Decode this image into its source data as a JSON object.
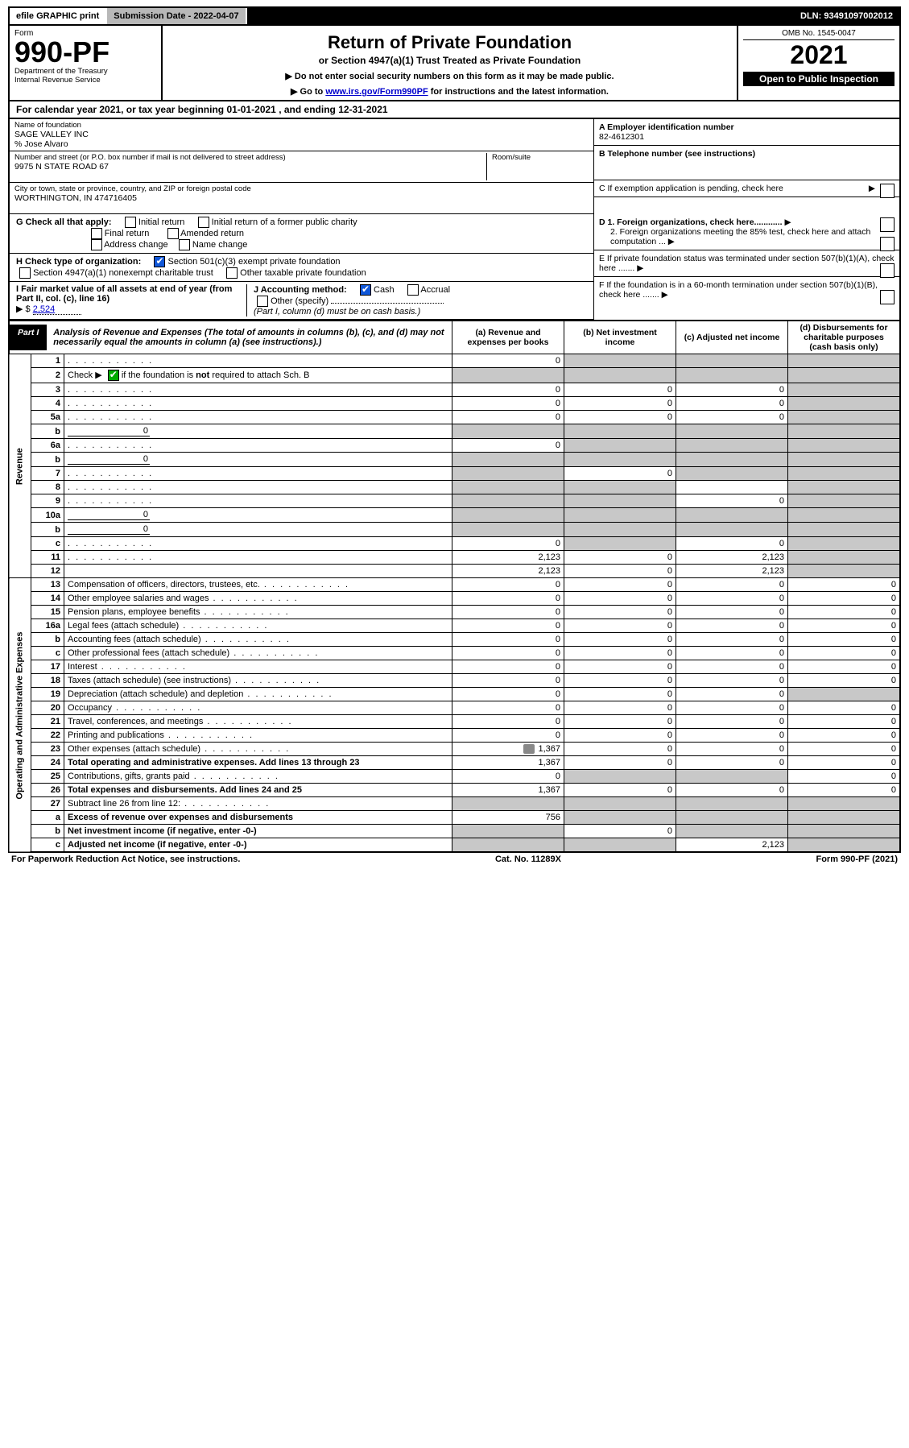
{
  "colors": {
    "black": "#000000",
    "white": "#ffffff",
    "header_grey": "#b8b8b8",
    "cell_grey": "#c8c8c8",
    "link_blue": "#0000cc",
    "check_green": "#0a9f0a",
    "check_blue": "#1057d8"
  },
  "topbar": {
    "efile": "efile GRAPHIC print",
    "submission": "Submission Date - 2022-04-07",
    "dln": "DLN: 93491097002012"
  },
  "header": {
    "form_label": "Form",
    "form_number": "990-PF",
    "dept": "Department of the Treasury",
    "irs": "Internal Revenue Service",
    "title": "Return of Private Foundation",
    "subtitle": "or Section 4947(a)(1) Trust Treated as Private Foundation",
    "instr1": "▶ Do not enter social security numbers on this form as it may be made public.",
    "instr2_pre": "▶ Go to ",
    "instr2_link": "www.irs.gov/Form990PF",
    "instr2_post": " for instructions and the latest information.",
    "omb": "OMB No. 1545-0047",
    "year": "2021",
    "open": "Open to Public Inspection"
  },
  "cal": {
    "text_pre": "For calendar year 2021, or tax year beginning ",
    "begin": "01-01-2021",
    "text_mid": " , and ending ",
    "end": "12-31-2021"
  },
  "entity": {
    "name_label": "Name of foundation",
    "name": "SAGE VALLEY INC",
    "care_of": "% Jose Alvaro",
    "addr_label": "Number and street (or P.O. box number if mail is not delivered to street address)",
    "addr": "9975 N STATE ROAD 67",
    "room_label": "Room/suite",
    "city_label": "City or town, state or province, country, and ZIP or foreign postal code",
    "city": "WORTHINGTON, IN  474716405"
  },
  "right": {
    "A_label": "A Employer identification number",
    "A_val": "82-4612301",
    "B_label": "B Telephone number (see instructions)",
    "C_label": "C If exemption application is pending, check here",
    "D1": "D 1. Foreign organizations, check here............",
    "D2": "2. Foreign organizations meeting the 85% test, check here and attach computation ...",
    "E": "E  If private foundation status was terminated under section 507(b)(1)(A), check here .......",
    "F": "F  If the foundation is in a 60-month termination under section 507(b)(1)(B), check here .......",
    "arrow": "▶"
  },
  "G": {
    "label": "G Check all that apply:",
    "opts": [
      "Initial return",
      "Initial return of a former public charity",
      "Final return",
      "Amended return",
      "Address change",
      "Name change"
    ]
  },
  "H": {
    "label": "H Check type of organization:",
    "opt1": "Section 501(c)(3) exempt private foundation",
    "opt2": "Section 4947(a)(1) nonexempt charitable trust",
    "opt3": "Other taxable private foundation"
  },
  "I": {
    "label": "I Fair market value of all assets at end of year (from Part II, col. (c), line 16)",
    "prefix": "▶ $",
    "value": "2,524"
  },
  "J": {
    "label": "J Accounting method:",
    "cash": "Cash",
    "accrual": "Accrual",
    "other": "Other (specify)",
    "note": "(Part I, column (d) must be on cash basis.)"
  },
  "part1": {
    "label": "Part I",
    "title": "Analysis of Revenue and Expenses",
    "desc": " (The total of amounts in columns (b), (c), and (d) may not necessarily equal the amounts in column (a) (see instructions).)",
    "col_a": "(a) Revenue and expenses per books",
    "col_b": "(b) Net investment income",
    "col_c": "(c) Adjusted net income",
    "col_d": "(d) Disbursements for charitable purposes (cash basis only)"
  },
  "sections": {
    "revenue": "Revenue",
    "expenses": "Operating and Administrative Expenses"
  },
  "rows": [
    {
      "n": "1",
      "d": "",
      "a": "0",
      "b": "",
      "c": "",
      "grey": [
        "b",
        "c",
        "d"
      ]
    },
    {
      "n": "2",
      "d": "",
      "a": "",
      "b": "",
      "c": "",
      "grey": [
        "a",
        "b",
        "c",
        "d"
      ],
      "checkbox": true
    },
    {
      "n": "3",
      "d": "",
      "a": "0",
      "b": "0",
      "c": "0",
      "grey": [
        "d"
      ]
    },
    {
      "n": "4",
      "d": "",
      "a": "0",
      "b": "0",
      "c": "0",
      "grey": [
        "d"
      ]
    },
    {
      "n": "5a",
      "d": "",
      "a": "0",
      "b": "0",
      "c": "0",
      "grey": [
        "d"
      ]
    },
    {
      "n": "b",
      "d": "",
      "inline_val": "0",
      "a": "",
      "b": "",
      "c": "",
      "grey": [
        "a",
        "b",
        "c",
        "d"
      ]
    },
    {
      "n": "6a",
      "d": "",
      "a": "0",
      "b": "",
      "c": "",
      "grey": [
        "b",
        "c",
        "d"
      ]
    },
    {
      "n": "b",
      "d": "",
      "inline_val": "0",
      "a": "",
      "b": "",
      "c": "",
      "grey": [
        "a",
        "b",
        "c",
        "d"
      ]
    },
    {
      "n": "7",
      "d": "",
      "a": "",
      "b": "0",
      "c": "",
      "grey": [
        "a",
        "c",
        "d"
      ]
    },
    {
      "n": "8",
      "d": "",
      "a": "",
      "b": "",
      "c": "",
      "grey": [
        "a",
        "b",
        "d"
      ]
    },
    {
      "n": "9",
      "d": "",
      "a": "",
      "b": "",
      "c": "0",
      "grey": [
        "a",
        "b",
        "d"
      ]
    },
    {
      "n": "10a",
      "d": "",
      "inline_val": "0",
      "a": "",
      "b": "",
      "c": "",
      "grey": [
        "a",
        "b",
        "c",
        "d"
      ]
    },
    {
      "n": "b",
      "d": "",
      "inline_val": "0",
      "a": "",
      "b": "",
      "c": "",
      "grey": [
        "a",
        "b",
        "c",
        "d"
      ]
    },
    {
      "n": "c",
      "d": "",
      "a": "0",
      "b": "",
      "c": "0",
      "grey": [
        "b",
        "d"
      ]
    },
    {
      "n": "11",
      "d": "",
      "a": "2,123",
      "b": "0",
      "c": "2,123",
      "grey": [
        "d"
      ]
    },
    {
      "n": "12",
      "d": "",
      "a": "2,123",
      "b": "0",
      "c": "2,123",
      "grey": [
        "d"
      ],
      "bold": true
    }
  ],
  "exp_rows": [
    {
      "n": "13",
      "d": "Compensation of officers, directors, trustees, etc.",
      "a": "0",
      "b": "0",
      "c": "0",
      "dd": "0"
    },
    {
      "n": "14",
      "d": "Other employee salaries and wages",
      "a": "0",
      "b": "0",
      "c": "0",
      "dd": "0"
    },
    {
      "n": "15",
      "d": "Pension plans, employee benefits",
      "a": "0",
      "b": "0",
      "c": "0",
      "dd": "0"
    },
    {
      "n": "16a",
      "d": "Legal fees (attach schedule)",
      "a": "0",
      "b": "0",
      "c": "0",
      "dd": "0"
    },
    {
      "n": "b",
      "d": "Accounting fees (attach schedule)",
      "a": "0",
      "b": "0",
      "c": "0",
      "dd": "0"
    },
    {
      "n": "c",
      "d": "Other professional fees (attach schedule)",
      "a": "0",
      "b": "0",
      "c": "0",
      "dd": "0"
    },
    {
      "n": "17",
      "d": "Interest",
      "a": "0",
      "b": "0",
      "c": "0",
      "dd": "0"
    },
    {
      "n": "18",
      "d": "Taxes (attach schedule) (see instructions)",
      "a": "0",
      "b": "0",
      "c": "0",
      "dd": "0"
    },
    {
      "n": "19",
      "d": "Depreciation (attach schedule) and depletion",
      "a": "0",
      "b": "0",
      "c": "0",
      "dd": "",
      "grey": [
        "dd"
      ]
    },
    {
      "n": "20",
      "d": "Occupancy",
      "a": "0",
      "b": "0",
      "c": "0",
      "dd": "0"
    },
    {
      "n": "21",
      "d": "Travel, conferences, and meetings",
      "a": "0",
      "b": "0",
      "c": "0",
      "dd": "0"
    },
    {
      "n": "22",
      "d": "Printing and publications",
      "a": "0",
      "b": "0",
      "c": "0",
      "dd": "0"
    },
    {
      "n": "23",
      "d": "Other expenses (attach schedule)",
      "a": "1,367",
      "b": "0",
      "c": "0",
      "dd": "0",
      "icon": true
    },
    {
      "n": "24",
      "d": "Total operating and administrative expenses. Add lines 13 through 23",
      "a": "1,367",
      "b": "0",
      "c": "0",
      "dd": "0",
      "bold": true
    },
    {
      "n": "25",
      "d": "Contributions, gifts, grants paid",
      "a": "0",
      "b": "",
      "c": "",
      "dd": "0",
      "grey": [
        "b",
        "c"
      ]
    },
    {
      "n": "26",
      "d": "Total expenses and disbursements. Add lines 24 and 25",
      "a": "1,367",
      "b": "0",
      "c": "0",
      "dd": "0",
      "bold": true
    },
    {
      "n": "27",
      "d": "Subtract line 26 from line 12:",
      "a": "",
      "b": "",
      "c": "",
      "dd": "",
      "grey": [
        "a",
        "b",
        "c",
        "dd"
      ]
    },
    {
      "n": "a",
      "d": "Excess of revenue over expenses and disbursements",
      "a": "756",
      "b": "",
      "c": "",
      "dd": "",
      "grey": [
        "b",
        "c",
        "dd"
      ],
      "bold": true
    },
    {
      "n": "b",
      "d": "Net investment income (if negative, enter -0-)",
      "a": "",
      "b": "0",
      "c": "",
      "dd": "",
      "grey": [
        "a",
        "c",
        "dd"
      ],
      "bold": true
    },
    {
      "n": "c",
      "d": "Adjusted net income (if negative, enter -0-)",
      "a": "",
      "b": "",
      "c": "2,123",
      "dd": "",
      "grey": [
        "a",
        "b",
        "dd"
      ],
      "bold": true
    }
  ],
  "footer": {
    "left": "For Paperwork Reduction Act Notice, see instructions.",
    "mid": "Cat. No. 11289X",
    "right": "Form 990-PF (2021)"
  }
}
